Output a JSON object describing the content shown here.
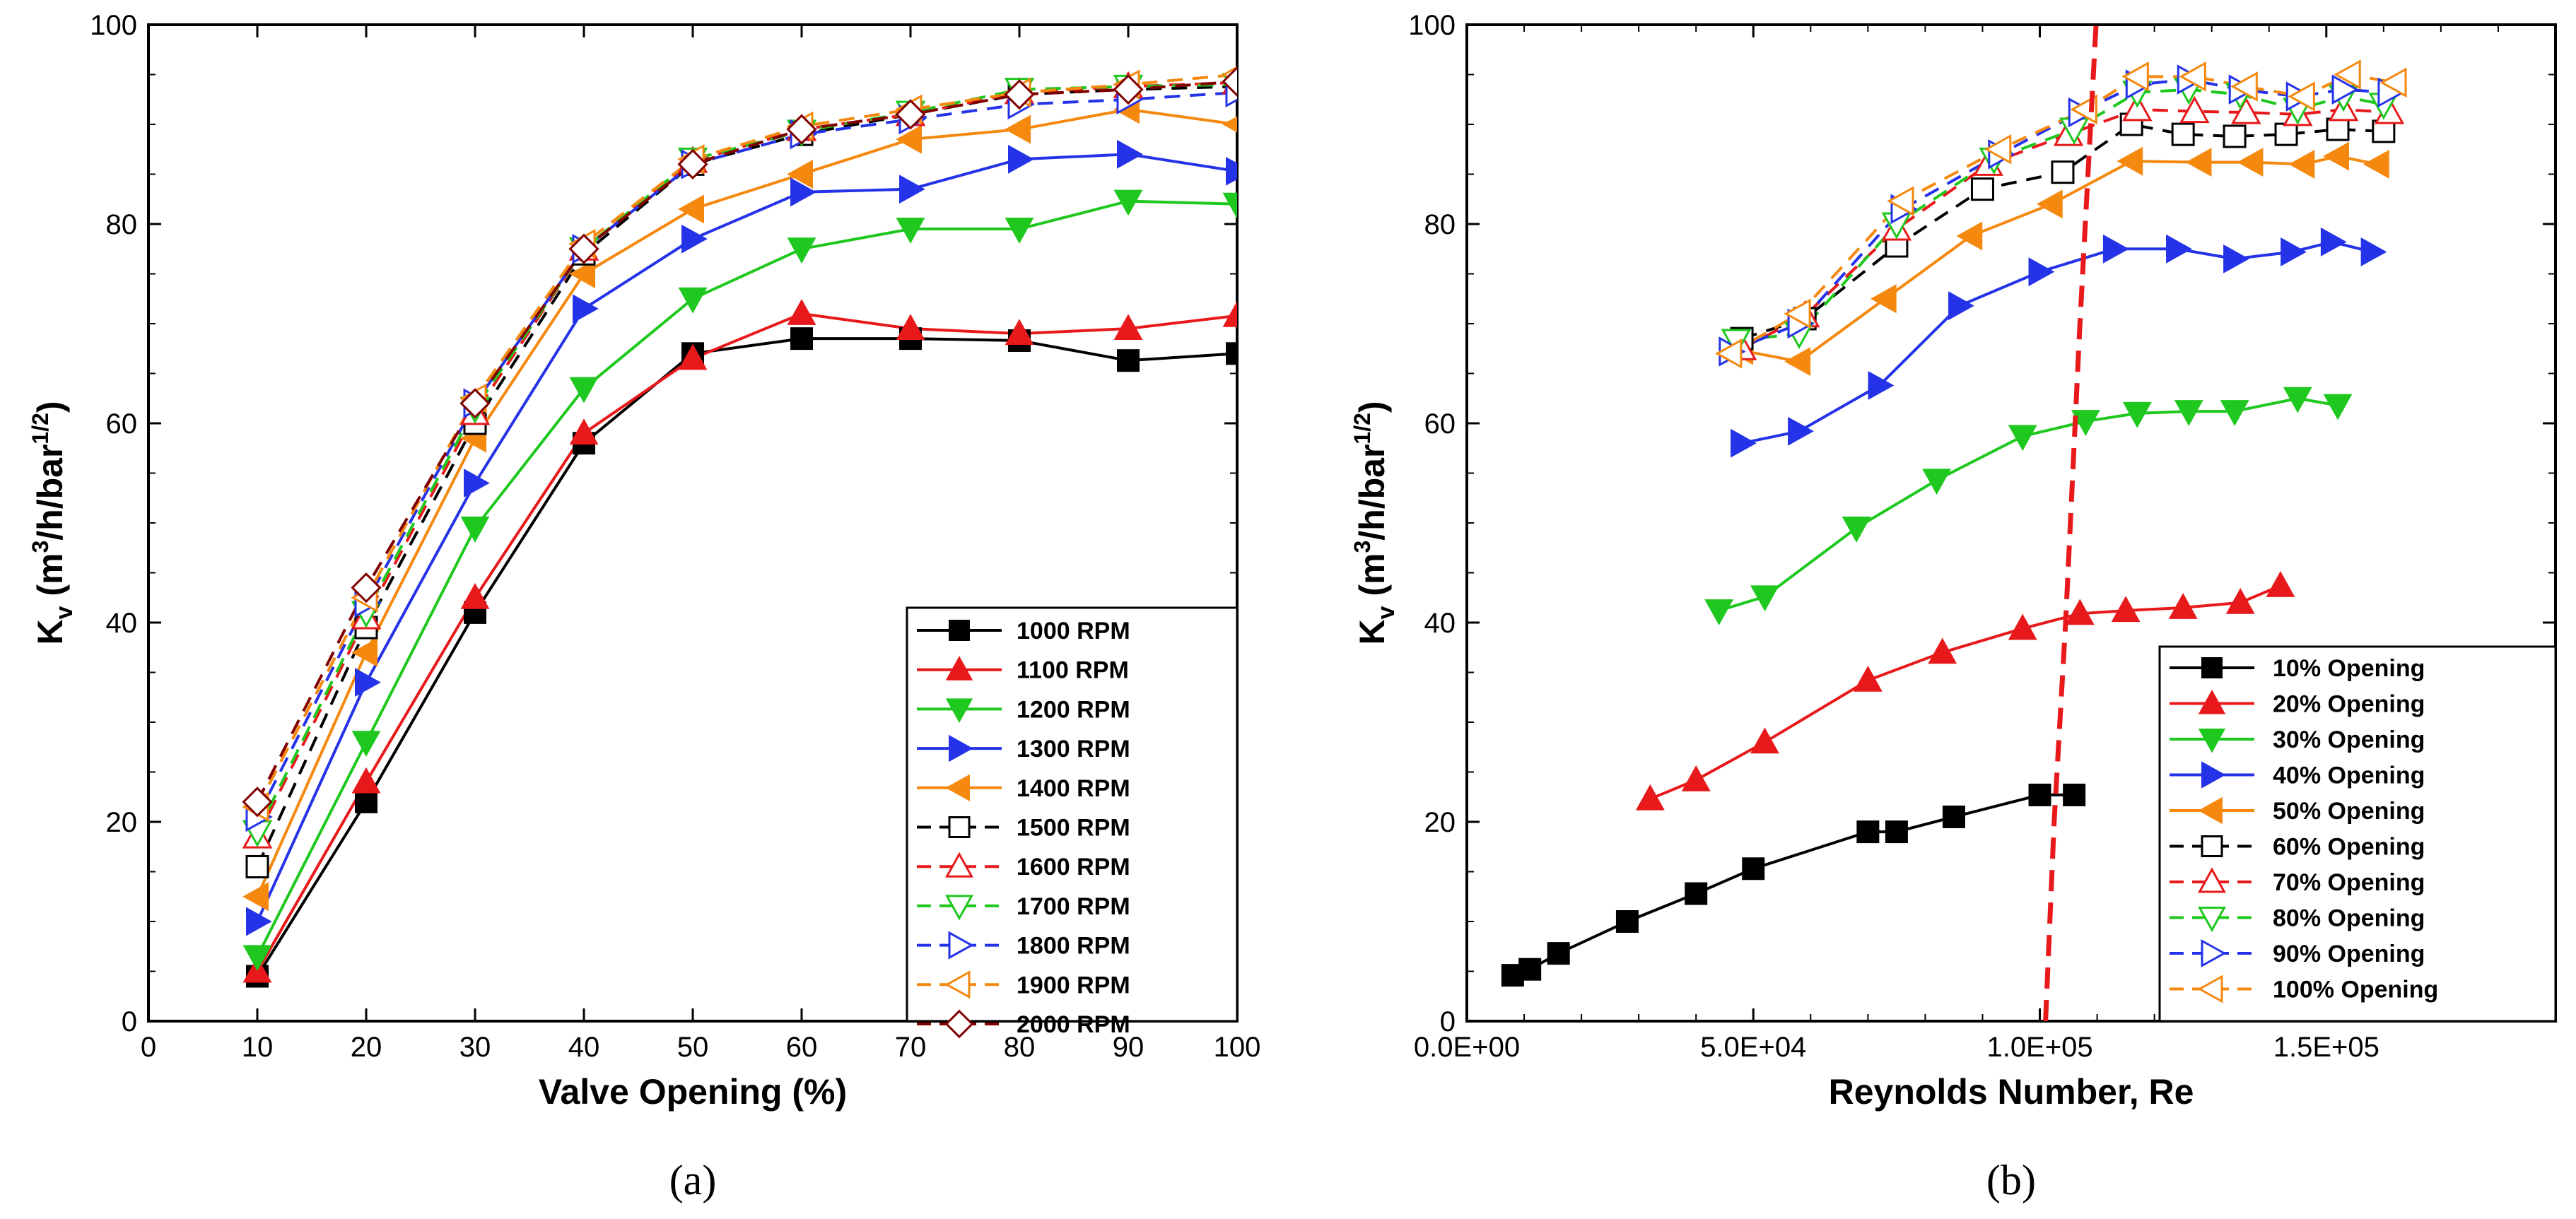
{
  "chart_data": [
    {
      "type": "line",
      "panel_label": "(a)",
      "xlabel": "Valve Opening (%)",
      "ylabel_main": "K",
      "ylabel_sub": "v",
      "ylabel_open": "(m",
      "ylabel_sup1": "3",
      "ylabel_mid": "/h/bar",
      "ylabel_sup2": "1/2",
      "ylabel_close": ")",
      "xlim": [
        0,
        100
      ],
      "ylim": [
        0,
        100
      ],
      "xticks": [
        0,
        10,
        20,
        30,
        40,
        50,
        60,
        70,
        80,
        90,
        100
      ],
      "yticks": [
        0,
        20,
        40,
        60,
        80,
        100
      ],
      "legend_position": "bottom-right",
      "series": [
        {
          "name": "1000 RPM",
          "color": "#000000",
          "dashed": false,
          "marker": "square",
          "filled": true,
          "x": [
            10,
            20,
            30,
            40,
            50,
            60,
            70,
            80,
            90,
            100
          ],
          "y": [
            4.5,
            22,
            41,
            58,
            67,
            68.5,
            68.5,
            68.3,
            66.3,
            67
          ]
        },
        {
          "name": "1100 RPM",
          "color": "#e8191b",
          "dashed": false,
          "marker": "triangle-up",
          "filled": true,
          "x": [
            10,
            20,
            30,
            40,
            50,
            60,
            70,
            80,
            90,
            100
          ],
          "y": [
            5,
            24,
            42.5,
            59,
            66.5,
            71,
            69.5,
            69,
            69.5,
            70.8
          ]
        },
        {
          "name": "1200 RPM",
          "color": "#1ec81e",
          "dashed": false,
          "marker": "triangle-down",
          "filled": true,
          "x": [
            10,
            20,
            30,
            40,
            50,
            60,
            70,
            80,
            90,
            100
          ],
          "y": [
            6.5,
            28,
            49.5,
            63.5,
            72.5,
            77.5,
            79.5,
            79.5,
            82.3,
            82
          ]
        },
        {
          "name": "1300 RPM",
          "color": "#2533e8",
          "dashed": false,
          "marker": "triangle-right",
          "filled": true,
          "x": [
            10,
            20,
            30,
            40,
            50,
            60,
            70,
            80,
            90,
            100
          ],
          "y": [
            10,
            34,
            54,
            71.5,
            78.5,
            83.2,
            83.5,
            86.5,
            87,
            85.3
          ]
        },
        {
          "name": "1400 RPM",
          "color": "#f5890f",
          "dashed": false,
          "marker": "triangle-left",
          "filled": true,
          "x": [
            10,
            20,
            30,
            40,
            50,
            60,
            70,
            80,
            90,
            100
          ],
          "y": [
            12.5,
            37,
            58.5,
            75,
            81.5,
            85,
            88.5,
            89.5,
            91.5,
            90
          ]
        },
        {
          "name": "1500 RPM",
          "color": "#000000",
          "dashed": true,
          "marker": "square",
          "filled": false,
          "x": [
            10,
            20,
            30,
            40,
            50,
            60,
            70,
            80,
            90,
            100
          ],
          "y": [
            15.5,
            39.5,
            60,
            77,
            86,
            89,
            91,
            93,
            93.5,
            93.8
          ]
        },
        {
          "name": "1600 RPM",
          "color": "#e8191b",
          "dashed": true,
          "marker": "triangle-up",
          "filled": false,
          "x": [
            10,
            20,
            30,
            40,
            50,
            60,
            70,
            80,
            90,
            100
          ],
          "y": [
            18.5,
            40.5,
            61,
            77.5,
            86.3,
            89.5,
            91,
            93.2,
            93.8,
            94.2
          ]
        },
        {
          "name": "1700 RPM",
          "color": "#1ec81e",
          "dashed": true,
          "marker": "triangle-down",
          "filled": false,
          "x": [
            10,
            20,
            30,
            40,
            50,
            60,
            70,
            80,
            90,
            100
          ],
          "y": [
            19,
            41,
            61.5,
            77.5,
            86.5,
            89.3,
            91.2,
            93.5,
            93.8,
            94
          ]
        },
        {
          "name": "1800 RPM",
          "color": "#2533e8",
          "dashed": true,
          "marker": "triangle-right",
          "filled": false,
          "x": [
            10,
            20,
            30,
            40,
            50,
            60,
            70,
            80,
            90,
            100
          ],
          "y": [
            20.5,
            42,
            62,
            77.5,
            86,
            89,
            90.5,
            92,
            92.5,
            93.2
          ]
        },
        {
          "name": "1900 RPM",
          "color": "#f5890f",
          "dashed": true,
          "marker": "triangle-left",
          "filled": false,
          "x": [
            10,
            20,
            30,
            40,
            50,
            60,
            70,
            80,
            90,
            100
          ],
          "y": [
            21.5,
            42.5,
            62.5,
            78,
            86.5,
            89.8,
            91.5,
            93.2,
            94,
            95
          ]
        },
        {
          "name": "2000 RPM",
          "color": "#800000",
          "dashed": true,
          "marker": "diamond",
          "filled": false,
          "x": [
            10,
            20,
            30,
            40,
            50,
            60,
            70,
            80,
            90,
            100
          ],
          "y": [
            22,
            43.5,
            62,
            77.5,
            86,
            89.5,
            91,
            93,
            93.5,
            94.3
          ]
        }
      ]
    },
    {
      "type": "line",
      "panel_label": "(b)",
      "xlabel": "Reynolds Number, Re",
      "ylabel_main": "K",
      "ylabel_sub": "v",
      "ylabel_open": "(m",
      "ylabel_sup1": "3",
      "ylabel_mid": "/h/bar",
      "ylabel_sup2": "1/2",
      "ylabel_close": ")",
      "xlim": [
        0,
        190000
      ],
      "ylim": [
        0,
        100
      ],
      "xticks": [
        0,
        50000,
        100000,
        150000
      ],
      "xtick_labels": [
        "0.0E+00",
        "5.0E+04",
        "1.0E+05",
        "1.5E+05"
      ],
      "yticks": [
        0,
        20,
        40,
        60,
        80,
        100
      ],
      "legend_position": "bottom-right",
      "transition_line": {
        "color": "#e8191b",
        "x": [
          101000,
          102500,
          104500,
          107000,
          110000
        ],
        "y": [
          0,
          20,
          40,
          70,
          102
        ]
      },
      "series": [
        {
          "name": "10% Opening",
          "color": "#000000",
          "dashed": false,
          "marker": "square",
          "filled": true,
          "x": [
            8000,
            11000,
            16000,
            28000,
            40000,
            50000,
            70000,
            75000,
            85000,
            100000,
            106000
          ],
          "y": [
            4.6,
            5.2,
            6.8,
            10,
            12.8,
            15.3,
            19,
            19,
            20.5,
            22.7,
            22.7
          ]
        },
        {
          "name": "20% Opening",
          "color": "#e8191b",
          "dashed": false,
          "marker": "triangle-up",
          "filled": true,
          "x": [
            32000,
            40000,
            52000,
            70000,
            83000,
            97000,
            107000,
            115000,
            125000,
            135000,
            142000
          ],
          "y": [
            22.3,
            24.2,
            28,
            34.2,
            37,
            39.4,
            40.9,
            41.2,
            41.5,
            42,
            43.7
          ]
        },
        {
          "name": "30% Opening",
          "color": "#1ec81e",
          "dashed": false,
          "marker": "triangle-down",
          "filled": true,
          "x": [
            44000,
            52000,
            68000,
            82000,
            97000,
            108000,
            117000,
            126000,
            134000,
            145000,
            152000
          ],
          "y": [
            41.2,
            42.6,
            49.5,
            54.3,
            58.7,
            60.2,
            61,
            61.2,
            61.2,
            62.5,
            61.8
          ]
        },
        {
          "name": "40% Opening",
          "color": "#2533e8",
          "dashed": false,
          "marker": "triangle-right",
          "filled": true,
          "x": [
            48000,
            58000,
            72000,
            86000,
            100000,
            113000,
            124000,
            134000,
            144000,
            151000,
            158000
          ],
          "y": [
            58,
            59.2,
            63.8,
            71.8,
            75.2,
            77.5,
            77.5,
            76.5,
            77.2,
            78.2,
            77.2
          ]
        },
        {
          "name": "50% Opening",
          "color": "#f5890f",
          "dashed": false,
          "marker": "triangle-left",
          "filled": true,
          "x": [
            48000,
            58000,
            73000,
            88000,
            102000,
            116000,
            128000,
            137000,
            146000,
            152000,
            159000
          ],
          "y": [
            67.3,
            66.2,
            72.5,
            78.8,
            82,
            86.3,
            86.2,
            86.2,
            86,
            86.8,
            86
          ]
        },
        {
          "name": "60% Opening",
          "color": "#000000",
          "dashed": true,
          "marker": "square",
          "filled": false,
          "x": [
            48000,
            59000,
            75000,
            90000,
            104000,
            116000,
            125000,
            134000,
            143000,
            152000,
            160000
          ],
          "y": [
            68.5,
            70.5,
            77.8,
            83.5,
            85.2,
            90,
            89,
            88.8,
            89,
            89.5,
            89.3
          ]
        },
        {
          "name": "70% Opening",
          "color": "#e8191b",
          "dashed": true,
          "marker": "triangle-up",
          "filled": false,
          "x": [
            48000,
            59000,
            75000,
            91000,
            105000,
            117000,
            127000,
            136000,
            145000,
            153000,
            161000
          ],
          "y": [
            67.5,
            70.8,
            79.5,
            86,
            89,
            91.5,
            91.3,
            91.2,
            91,
            91.5,
            91.2
          ]
        },
        {
          "name": "80% Opening",
          "color": "#1ec81e",
          "dashed": true,
          "marker": "triangle-down",
          "filled": false,
          "x": [
            47000,
            58000,
            75000,
            92000,
            106000,
            117000,
            126000,
            135000,
            145000,
            153000,
            160000
          ],
          "y": [
            68.3,
            69,
            80,
            86.5,
            89.5,
            93.2,
            93.5,
            93,
            91.5,
            92.8,
            92
          ]
        },
        {
          "name": "90% Opening",
          "color": "#2533e8",
          "dashed": true,
          "marker": "triangle-right",
          "filled": false,
          "x": [
            46000,
            58000,
            76000,
            93000,
            107000,
            117000,
            126000,
            135000,
            145000,
            153000,
            161000
          ],
          "y": [
            67.2,
            70,
            81.5,
            87,
            91.2,
            94,
            94.5,
            93.5,
            92.8,
            93.5,
            93.2
          ]
        },
        {
          "name": "100% Opening",
          "color": "#f5890f",
          "dashed": true,
          "marker": "triangle-left",
          "filled": false,
          "x": [
            46000,
            58000,
            76000,
            93000,
            108000,
            117000,
            127000,
            136000,
            146000,
            154000,
            162000
          ],
          "y": [
            67,
            71,
            82.3,
            87.5,
            91.5,
            94.8,
            94.8,
            93.8,
            92.8,
            95,
            94.2
          ]
        }
      ]
    }
  ]
}
